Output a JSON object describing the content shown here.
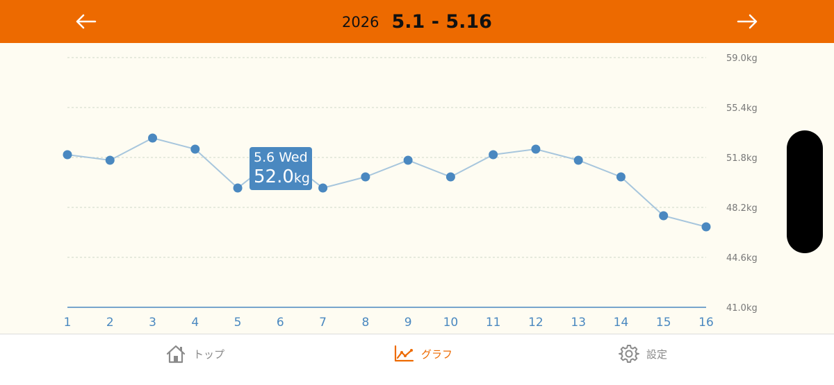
{
  "header": {
    "year": "2026",
    "range": "5.1 - 5.16",
    "back_icon": "arrow-left-icon",
    "forward_icon": "arrow-right-icon"
  },
  "colors": {
    "accent": "#ed6a00",
    "line": "#a7c6dd",
    "point": "#4a88c0",
    "axis_text": "#4a88c0",
    "label_text": "#777777",
    "background": "#fefcf2"
  },
  "tooltip": {
    "date": "5.6 Wed",
    "weight": "52.0",
    "unit": "kg"
  },
  "chart_data": {
    "type": "line",
    "x": [
      1,
      2,
      3,
      4,
      5,
      6,
      7,
      8,
      9,
      10,
      11,
      12,
      13,
      14,
      15,
      16
    ],
    "series": [
      {
        "values": [
          52.0,
          51.6,
          53.2,
          52.4,
          49.6,
          52.0,
          49.6,
          50.4,
          51.6,
          50.4,
          52.0,
          52.4,
          51.6,
          50.4,
          47.6,
          46.8
        ]
      }
    ],
    "y_ticks": [
      "59.0kg",
      "55.4kg",
      "51.8kg",
      "48.2kg",
      "44.6kg",
      "41.0kg"
    ],
    "ylim": [
      41.0,
      59.0
    ],
    "grid": true,
    "highlighted_index": 5
  },
  "tabs": [
    {
      "label": "トップ",
      "icon": "home-icon"
    },
    {
      "label": "グラフ",
      "icon": "chart-icon"
    },
    {
      "label": "設定",
      "icon": "gear-icon"
    }
  ]
}
